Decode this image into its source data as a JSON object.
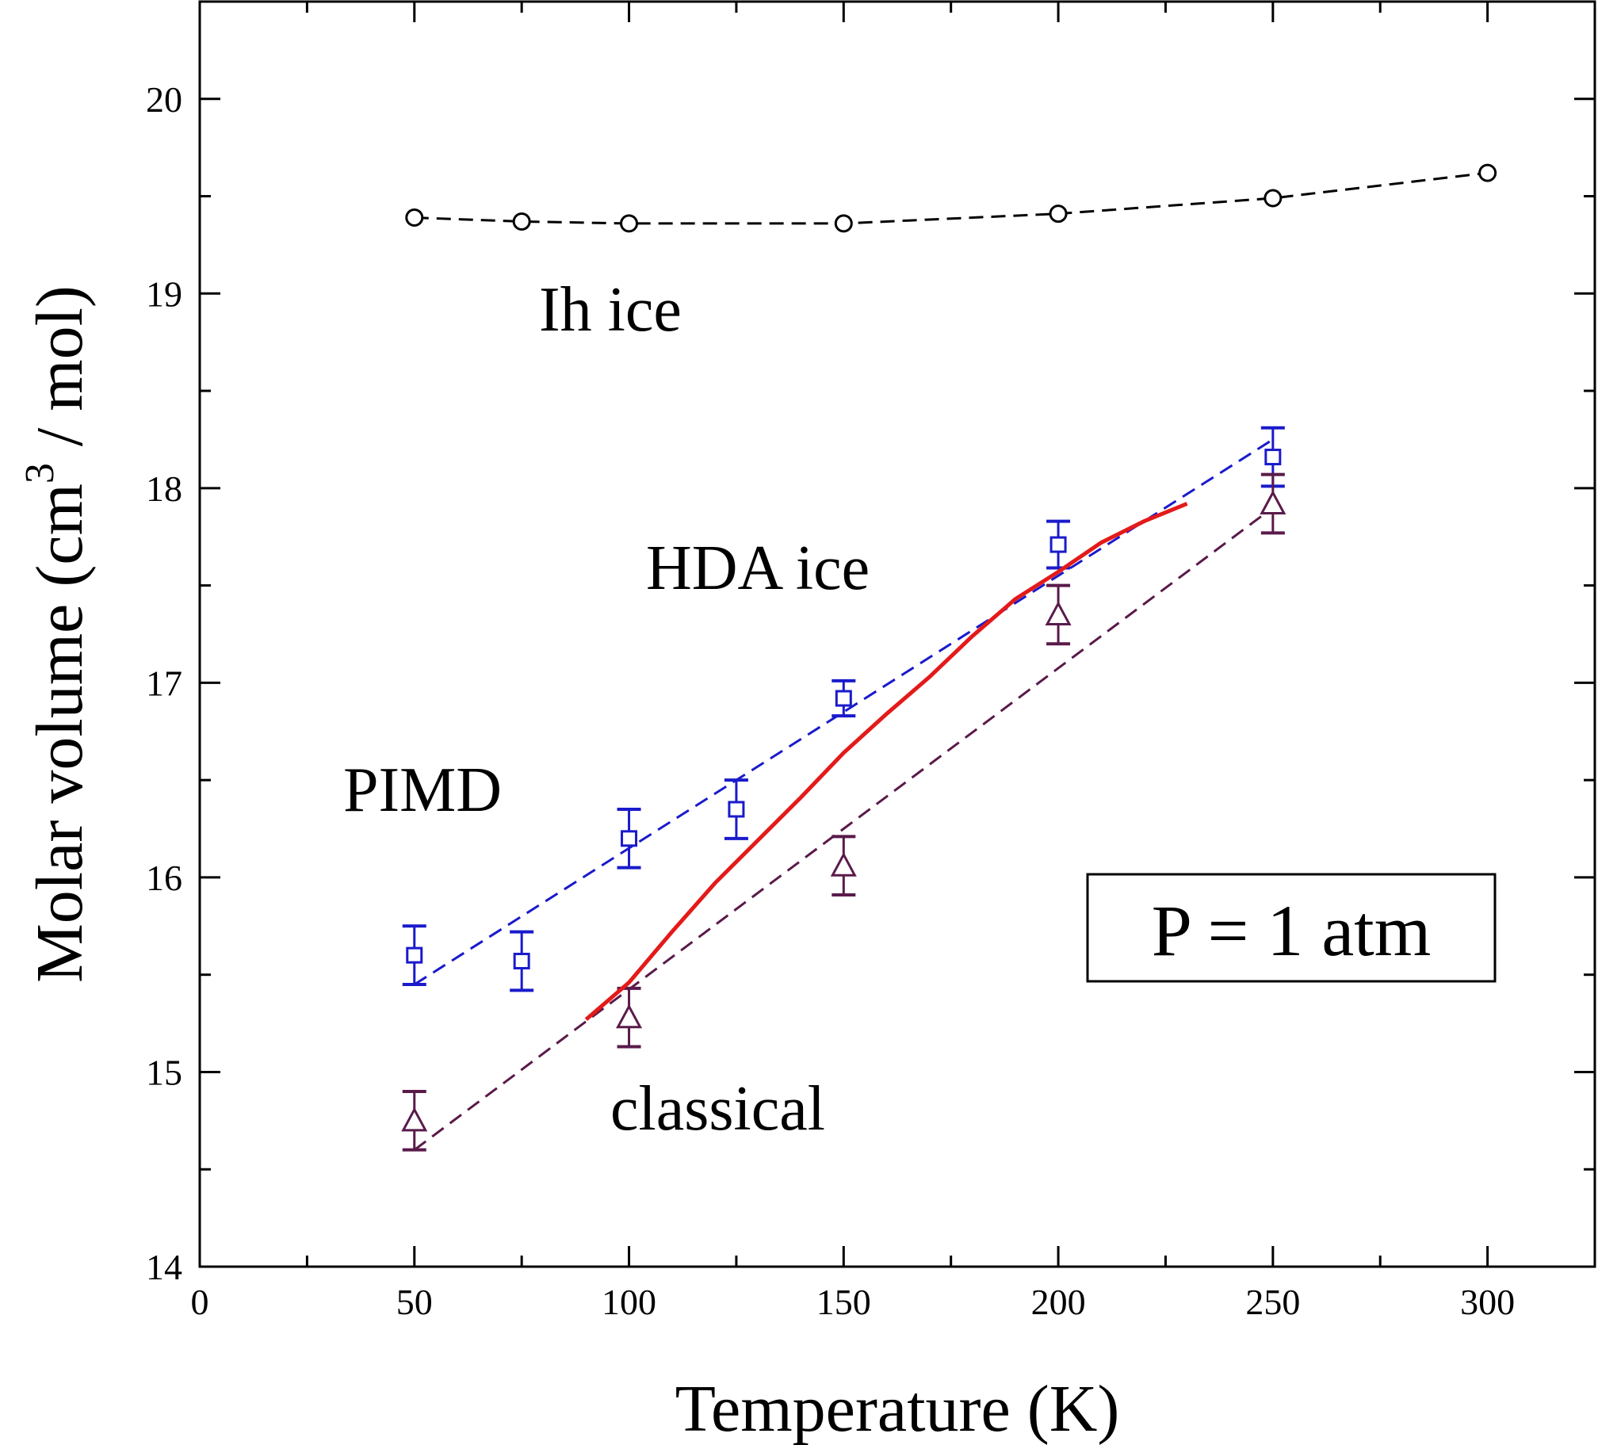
{
  "chart_data": {
    "type": "scatter",
    "xlabel": "Temperature  (K)",
    "ylabel_main": "Molar  volume  (cm",
    "ylabel_sup": "3",
    "ylabel_tail": " / mol)",
    "xlim": [
      0,
      325
    ],
    "ylim": [
      14,
      20.5
    ],
    "xticks": [
      0,
      50,
      100,
      150,
      200,
      250,
      300
    ],
    "yticks": [
      14,
      15,
      16,
      17,
      18,
      19,
      20
    ],
    "xtick_labels": [
      "0",
      "50",
      "100",
      "150",
      "200",
      "250",
      "300"
    ],
    "ytick_labels": [
      "14",
      "15",
      "16",
      "17",
      "18",
      "19",
      "20"
    ],
    "grid": false,
    "series": [
      {
        "name": "Ih  ice",
        "marker": "circle",
        "color": "#000000",
        "line": "dashed",
        "x": [
          50,
          75,
          100,
          150,
          200,
          250,
          300
        ],
        "y": [
          19.39,
          19.37,
          19.36,
          19.36,
          19.41,
          19.49,
          19.62
        ]
      },
      {
        "name": "PIMD",
        "marker": "square",
        "color": "#1a1acc",
        "x": [
          50,
          75,
          100,
          125,
          150,
          200,
          250
        ],
        "y": [
          15.6,
          15.57,
          16.2,
          16.35,
          16.92,
          17.71,
          18.16
        ],
        "err": [
          0.15,
          0.15,
          0.15,
          0.15,
          0.09,
          0.12,
          0.15
        ],
        "fit": {
          "x": [
            50,
            250
          ],
          "y": [
            15.45,
            18.25
          ]
        }
      },
      {
        "name": "classical",
        "marker": "triangle",
        "color": "#5a1a4a",
        "x": [
          50,
          100,
          150,
          200,
          250
        ],
        "y": [
          14.75,
          15.28,
          16.06,
          17.35,
          17.92
        ],
        "err": [
          0.15,
          0.15,
          0.15,
          0.15,
          0.15
        ],
        "fit": {
          "x": [
            50,
            250
          ],
          "y": [
            14.6,
            17.9
          ]
        }
      },
      {
        "marker": "none",
        "color": "#e41a1a",
        "line": "solid",
        "x": [
          90,
          100,
          110,
          120,
          130,
          140,
          150,
          160,
          170,
          180,
          190,
          200,
          210,
          220,
          230
        ],
        "y": [
          15.27,
          15.46,
          15.72,
          15.97,
          16.19,
          16.41,
          16.64,
          16.84,
          17.03,
          17.24,
          17.43,
          17.57,
          17.72,
          17.83,
          17.92
        ]
      }
    ],
    "annotations": {
      "ih": "Ih  ice",
      "hda": "HDA  ice",
      "pimd": "PIMD",
      "classical": "classical",
      "box": "P = 1 atm"
    }
  }
}
